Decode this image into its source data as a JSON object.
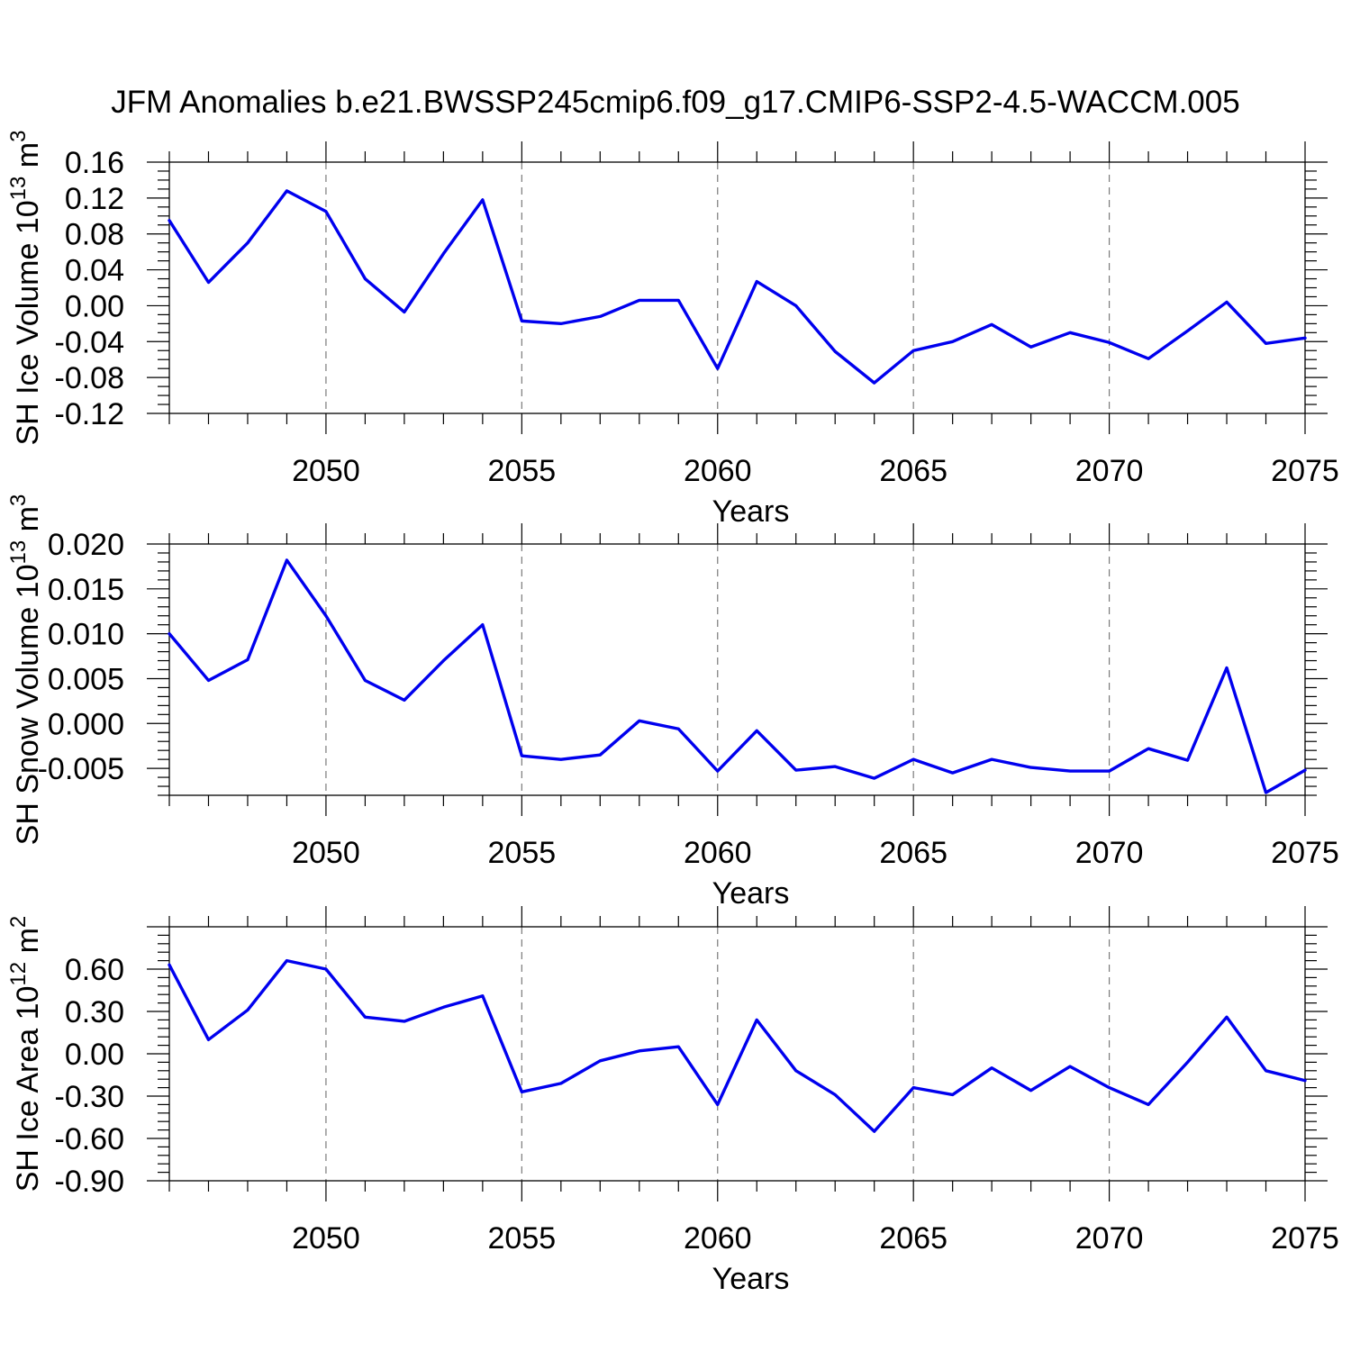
{
  "title": "JFM Anomalies b.e21.BWSSP245cmip6.f09_g17.CMIP6-SSP2-4.5-WACCM.005",
  "colors": {
    "line": "#0000ee",
    "axis": "#000000",
    "grid": "#7a7a7a",
    "text": "#000000",
    "background": "#ffffff"
  },
  "x_axis": {
    "label": "Years",
    "min": 2046,
    "max": 2075,
    "major_ticks": [
      2050,
      2055,
      2060,
      2065,
      2070,
      2075
    ],
    "major_tick_labels": [
      "2050",
      "2055",
      "2060",
      "2065",
      "2070",
      "2075"
    ],
    "minor_step": 1,
    "gridlines": [
      2050,
      2055,
      2060,
      2065,
      2070
    ]
  },
  "years": [
    2046,
    2047,
    2048,
    2049,
    2050,
    2051,
    2052,
    2053,
    2054,
    2055,
    2056,
    2057,
    2058,
    2059,
    2060,
    2061,
    2062,
    2063,
    2064,
    2065,
    2066,
    2067,
    2068,
    2069,
    2070,
    2071,
    2072,
    2073,
    2074,
    2075
  ],
  "chart_data": [
    {
      "type": "line",
      "name": "sh-ice-volume",
      "ylabel_segments": [
        {
          "t": "SH Ice Volume 10"
        },
        {
          "t": "13",
          "sup": true
        },
        {
          "t": " m"
        },
        {
          "t": "3",
          "sup": true
        }
      ],
      "ylim": [
        -0.12,
        0.16
      ],
      "ymajor_step": 0.04,
      "yminor_step": 0.01,
      "yticks": [
        {
          "v": 0.16,
          "label": "0.16"
        },
        {
          "v": 0.12,
          "label": "0.12"
        },
        {
          "v": 0.08,
          "label": "0.08"
        },
        {
          "v": 0.04,
          "label": "0.04"
        },
        {
          "v": 0.0,
          "label": "0.00"
        },
        {
          "v": -0.04,
          "label": "-0.04"
        },
        {
          "v": -0.08,
          "label": "-0.08"
        },
        {
          "v": -0.12,
          "label": "-0.12"
        }
      ],
      "values": [
        0.095,
        0.026,
        0.07,
        0.128,
        0.105,
        0.03,
        -0.007,
        0.058,
        0.118,
        -0.017,
        -0.02,
        -0.012,
        0.006,
        0.006,
        -0.07,
        0.027,
        0.0,
        -0.051,
        -0.086,
        -0.05,
        -0.04,
        -0.021,
        -0.046,
        -0.03,
        -0.041,
        -0.059,
        -0.028,
        0.004,
        -0.042,
        -0.036
      ]
    },
    {
      "type": "line",
      "name": "sh-snow-volume",
      "ylabel_segments": [
        {
          "t": "SH Snow Volume 10"
        },
        {
          "t": "13",
          "sup": true
        },
        {
          "t": " m"
        },
        {
          "t": "3",
          "sup": true
        }
      ],
      "ylim": [
        -0.008,
        0.02
      ],
      "ymajor_step": 0.005,
      "yminor_step": 0.001,
      "yticks": [
        {
          "v": 0.02,
          "label": "0.020"
        },
        {
          "v": 0.015,
          "label": "0.015"
        },
        {
          "v": 0.01,
          "label": "0.010"
        },
        {
          "v": 0.005,
          "label": "0.005"
        },
        {
          "v": 0.0,
          "label": "0.000"
        },
        {
          "v": -0.005,
          "label": "-0.005"
        }
      ],
      "values": [
        0.01,
        0.0048,
        0.0071,
        0.0182,
        0.012,
        0.0048,
        0.0026,
        0.007,
        0.011,
        -0.0036,
        -0.004,
        -0.0035,
        0.0003,
        -0.0006,
        -0.0053,
        -0.0008,
        -0.0052,
        -0.0048,
        -0.0061,
        -0.004,
        -0.0055,
        -0.004,
        -0.0049,
        -0.0053,
        -0.0053,
        -0.0028,
        -0.0041,
        0.0062,
        -0.0077,
        -0.0052
      ]
    },
    {
      "type": "line",
      "name": "sh-ice-area",
      "ylabel_segments": [
        {
          "t": "SH Ice Area 10"
        },
        {
          "t": "12",
          "sup": true
        },
        {
          "t": " m"
        },
        {
          "t": "2",
          "sup": true
        }
      ],
      "ylim": [
        -0.9,
        0.9
      ],
      "ymajor_step": 0.3,
      "yminor_step": 0.06,
      "yticks": [
        {
          "v": 0.6,
          "label": "0.60"
        },
        {
          "v": 0.3,
          "label": "0.30"
        },
        {
          "v": 0.0,
          "label": "0.00"
        },
        {
          "v": -0.3,
          "label": "-0.30"
        },
        {
          "v": -0.6,
          "label": "-0.60"
        },
        {
          "v": -0.9,
          "label": "-0.90"
        }
      ],
      "values": [
        0.63,
        0.1,
        0.31,
        0.66,
        0.6,
        0.26,
        0.23,
        0.33,
        0.41,
        -0.27,
        -0.21,
        -0.05,
        0.02,
        0.05,
        -0.36,
        0.24,
        -0.12,
        -0.29,
        -0.55,
        -0.24,
        -0.29,
        -0.1,
        -0.26,
        -0.09,
        -0.24,
        -0.36,
        -0.06,
        0.26,
        -0.12,
        -0.19
      ]
    }
  ]
}
